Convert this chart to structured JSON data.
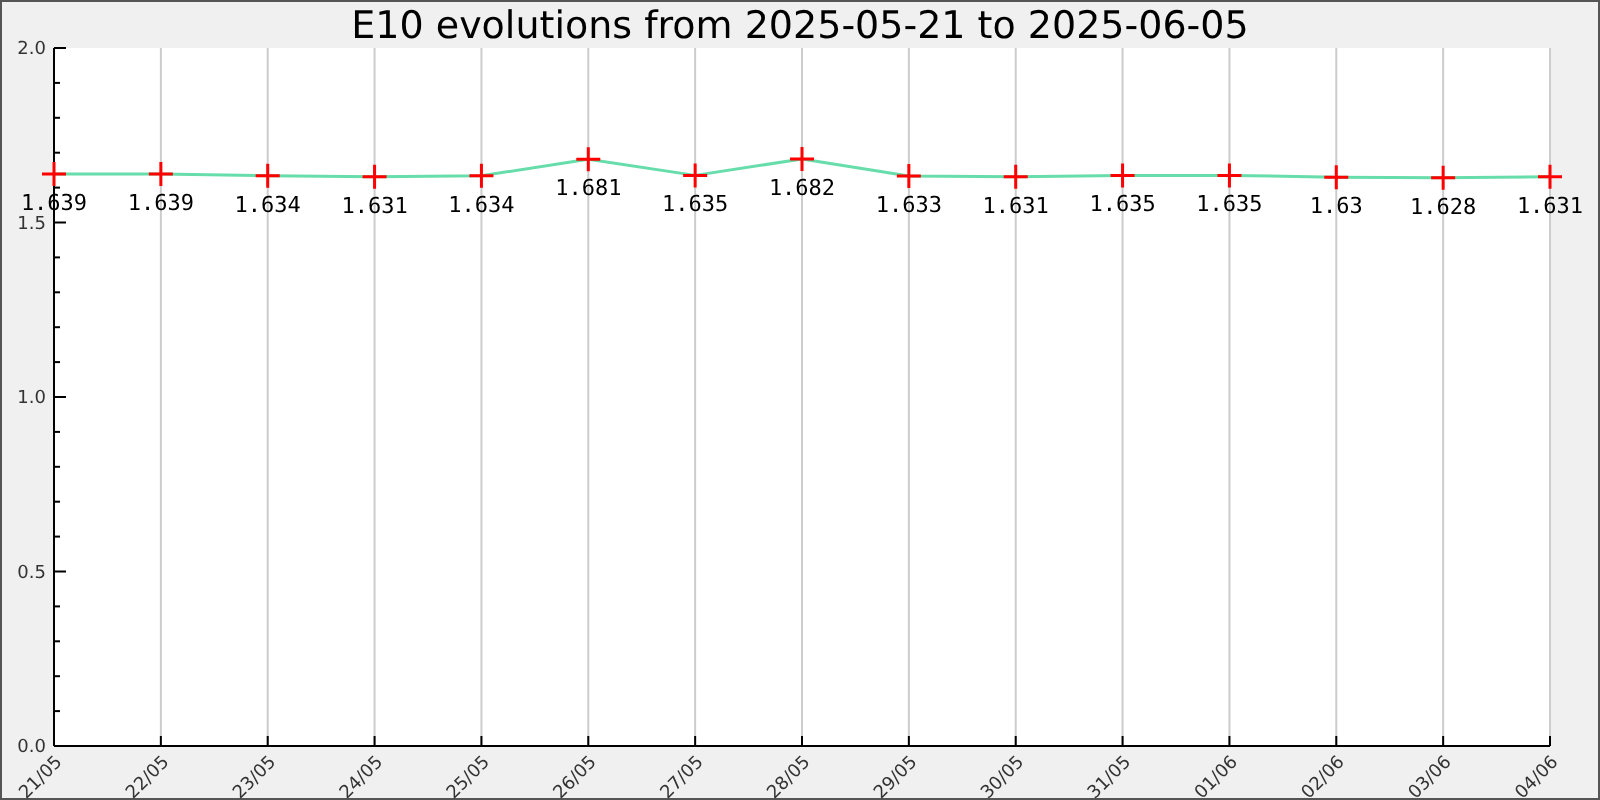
{
  "chart_data": {
    "type": "line",
    "title": "E10 evolutions from 2025-05-21 to 2025-06-05",
    "categories": [
      "21/05",
      "22/05",
      "23/05",
      "24/05",
      "25/05",
      "26/05",
      "27/05",
      "28/05",
      "29/05",
      "30/05",
      "31/05",
      "01/06",
      "02/06",
      "03/06",
      "04/06"
    ],
    "series": [
      {
        "color": "#66ddaa",
        "values": [
          1.639,
          1.639,
          1.634,
          1.631,
          1.634,
          1.681,
          1.635,
          1.682,
          1.633,
          1.631,
          1.635,
          1.635,
          1.63,
          1.628,
          1.631
        ]
      }
    ],
    "ylim": [
      0,
      2
    ],
    "yticks": [
      {
        "value": 0,
        "label": "0.0"
      },
      {
        "value": 0.5,
        "label": "0.5"
      },
      {
        "value": 1,
        "label": "1.0"
      },
      {
        "value": 1.5,
        "label": "1.5"
      },
      {
        "value": 2,
        "label": "2.0"
      }
    ],
    "grid": "x",
    "marker": "cross",
    "data_labels": true
  }
}
